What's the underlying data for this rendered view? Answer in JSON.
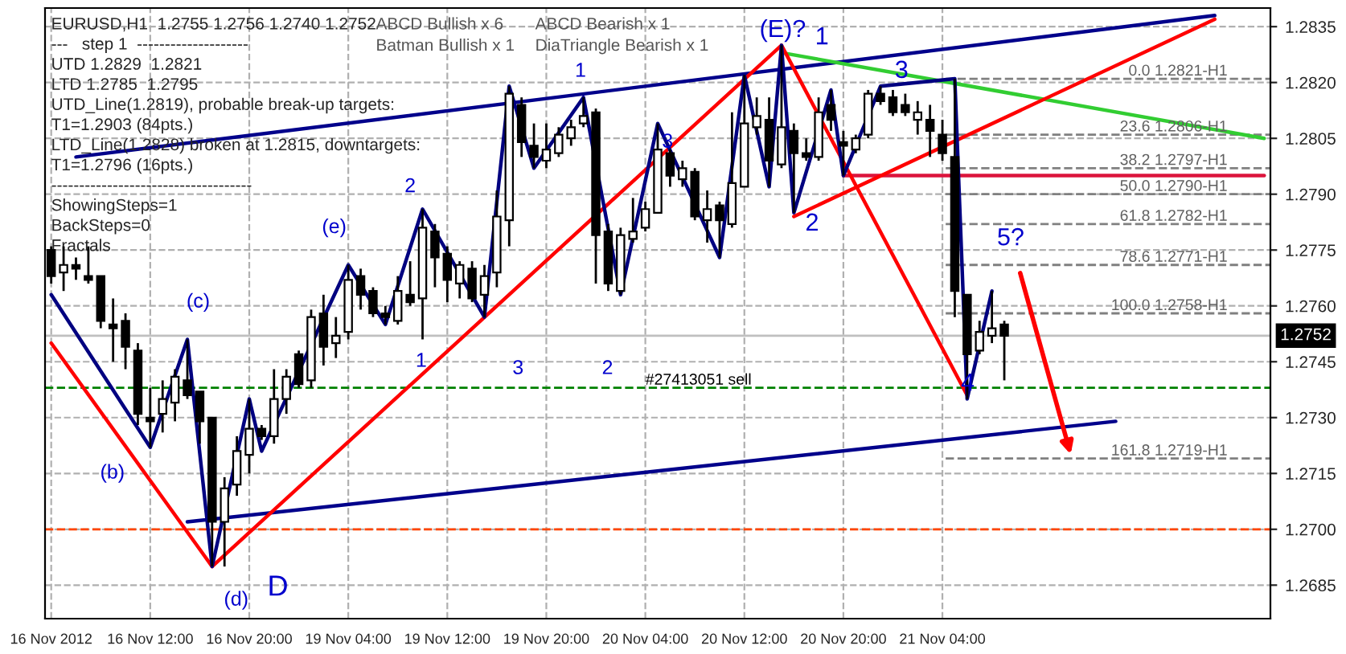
{
  "chart_data": {
    "type": "candlestick",
    "title": "EURUSD,H1  1.2755 1.2756 1.2740 1.2752",
    "categories": [
      "16 Nov 2012",
      null,
      null,
      null,
      null,
      null,
      null,
      null,
      "16 Nov 12:00",
      null,
      null,
      null,
      null,
      null,
      null,
      null,
      "16 Nov 20:00",
      null,
      null,
      null,
      null,
      null,
      null,
      null,
      "19 Nov 04:00",
      null,
      null,
      null,
      null,
      null,
      null,
      null,
      "19 Nov 12:00",
      null,
      null,
      null,
      null,
      null,
      null,
      null,
      "19 Nov 20:00",
      null,
      null,
      null,
      null,
      null,
      null,
      null,
      "20 Nov 04:00",
      null,
      null,
      null,
      null,
      null,
      null,
      null,
      "20 Nov 12:00",
      null,
      null,
      null,
      null,
      null,
      null,
      null,
      "20 Nov 20:00",
      null,
      null,
      null,
      null,
      null,
      null,
      null,
      "21 Nov 04:00",
      null,
      null,
      null,
      null,
      null,
      null,
      null,
      null,
      null,
      null,
      null,
      null,
      null,
      null,
      null,
      null,
      null,
      null,
      null,
      null,
      null,
      null,
      null,
      null,
      null,
      null
    ],
    "ohlc": [
      [
        1.2775,
        1.2776,
        1.2766,
        1.2768
      ],
      [
        1.2769,
        1.2776,
        1.2764,
        1.2771
      ],
      [
        1.2771,
        1.2773,
        1.2767,
        1.277
      ],
      [
        1.2768,
        1.2776,
        1.2766,
        1.2767
      ],
      [
        1.2768,
        1.2768,
        1.2754,
        1.2756
      ],
      [
        1.2755,
        1.2762,
        1.2745,
        1.2754
      ],
      [
        1.2756,
        1.2758,
        1.2743,
        1.2749
      ],
      [
        1.2748,
        1.275,
        1.2728,
        1.2731
      ],
      [
        1.273,
        1.2738,
        1.2722,
        1.2729
      ],
      [
        1.2731,
        1.274,
        1.2726,
        1.2735
      ],
      [
        1.2734,
        1.2743,
        1.2729,
        1.2741
      ],
      [
        1.274,
        1.2751,
        1.2735,
        1.2736
      ],
      [
        1.2737,
        1.2737,
        1.2723,
        1.2729
      ],
      [
        1.273,
        1.273,
        1.269,
        1.2702
      ],
      [
        1.2702,
        1.2714,
        1.269,
        1.2711
      ],
      [
        1.2712,
        1.2725,
        1.2709,
        1.2721
      ],
      [
        1.272,
        1.2735,
        1.2715,
        1.2727
      ],
      [
        1.2727,
        1.2728,
        1.2724,
        1.2725
      ],
      [
        1.2725,
        1.2743,
        1.2723,
        1.2735
      ],
      [
        1.2735,
        1.2743,
        1.2731,
        1.2741
      ],
      [
        1.2747,
        1.2748,
        1.2738,
        1.2739
      ],
      [
        1.274,
        1.2759,
        1.2738,
        1.2757
      ],
      [
        1.2758,
        1.2763,
        1.2744,
        1.2749
      ],
      [
        1.275,
        1.2757,
        1.2746,
        1.2752
      ],
      [
        1.2753,
        1.2771,
        1.2751,
        1.2767
      ],
      [
        1.2768,
        1.277,
        1.2759,
        1.2763
      ],
      [
        1.2764,
        1.2765,
        1.2757,
        1.2758
      ],
      [
        1.2758,
        1.276,
        1.2755,
        1.2757
      ],
      [
        1.2756,
        1.2768,
        1.2755,
        1.2764
      ],
      [
        1.2763,
        1.2772,
        1.276,
        1.2761
      ],
      [
        1.2762,
        1.2786,
        1.2751,
        1.2781
      ],
      [
        1.278,
        1.2782,
        1.2765,
        1.2773
      ],
      [
        1.2774,
        1.2776,
        1.2761,
        1.2767
      ],
      [
        1.2766,
        1.2772,
        1.2762,
        1.2771
      ],
      [
        1.277,
        1.2772,
        1.2761,
        1.2762
      ],
      [
        1.2763,
        1.2771,
        1.2757,
        1.2768
      ],
      [
        1.2769,
        1.2791,
        1.2765,
        1.2784
      ],
      [
        1.2783,
        1.2819,
        1.2776,
        1.2817
      ],
      [
        1.2814,
        1.2816,
        1.28,
        1.2804
      ],
      [
        1.2803,
        1.2809,
        1.2797,
        1.28
      ],
      [
        1.2799,
        1.2809,
        1.2797,
        1.2802
      ],
      [
        1.2801,
        1.2808,
        1.28,
        1.2806
      ],
      [
        1.2805,
        1.281,
        1.2803,
        1.2808
      ],
      [
        1.2809,
        1.2816,
        1.2808,
        1.2811
      ],
      [
        1.2812,
        1.2813,
        1.2766,
        1.2779
      ],
      [
        1.278,
        1.2782,
        1.2764,
        1.2766
      ],
      [
        1.2764,
        1.2781,
        1.2763,
        1.2779
      ],
      [
        1.2778,
        1.2789,
        1.2777,
        1.278
      ],
      [
        1.2781,
        1.2788,
        1.278,
        1.2786
      ],
      [
        1.2785,
        1.2809,
        1.2785,
        1.2802
      ],
      [
        1.2801,
        1.2802,
        1.2792,
        1.2795
      ],
      [
        1.2794,
        1.2799,
        1.2792,
        1.2797
      ],
      [
        1.2796,
        1.2797,
        1.2783,
        1.2784
      ],
      [
        1.2783,
        1.2791,
        1.2777,
        1.2786
      ],
      [
        1.2787,
        1.2788,
        1.2773,
        1.2783
      ],
      [
        1.2782,
        1.2812,
        1.2781,
        1.2793
      ],
      [
        1.2792,
        1.2822,
        1.2792,
        1.2809
      ],
      [
        1.2808,
        1.2816,
        1.2806,
        1.2811
      ],
      [
        1.281,
        1.2816,
        1.2792,
        1.2799
      ],
      [
        1.2798,
        1.283,
        1.2797,
        1.2808
      ],
      [
        1.2807,
        1.2809,
        1.2785,
        1.2801
      ],
      [
        1.2801,
        1.2805,
        1.2799,
        1.28
      ],
      [
        1.28,
        1.2816,
        1.2799,
        1.2812
      ],
      [
        1.2814,
        1.2818,
        1.2807,
        1.281
      ],
      [
        1.2804,
        1.2807,
        1.2795,
        1.2803
      ],
      [
        1.2802,
        1.2806,
        1.2801,
        1.2805
      ],
      [
        1.2806,
        1.2818,
        1.2805,
        1.2817
      ],
      [
        1.2817,
        1.2819,
        1.2814,
        1.2815
      ],
      [
        1.2816,
        1.2818,
        1.2811,
        1.2812
      ],
      [
        1.2814,
        1.2817,
        1.2811,
        1.2812
      ],
      [
        1.281,
        1.2815,
        1.2806,
        1.2812
      ],
      [
        1.281,
        1.2814,
        1.28,
        1.2807
      ],
      [
        1.2806,
        1.281,
        1.2799,
        1.2801
      ],
      [
        1.28,
        1.2821,
        1.2757,
        1.2764
      ],
      [
        1.2763,
        1.2763,
        1.2735,
        1.2747
      ],
      [
        1.2748,
        1.2756,
        1.2747,
        1.2753
      ],
      [
        1.2752,
        1.2764,
        1.275,
        1.2754
      ],
      [
        1.2755,
        1.2756,
        1.274,
        1.2752
      ],
      null,
      null,
      null,
      null,
      null,
      null,
      null,
      null,
      null,
      null,
      null,
      null,
      null,
      null,
      null,
      null,
      null,
      null,
      null,
      null,
      null
    ],
    "series": [
      {
        "type": "line",
        "color": "#00008b",
        "values": [
          null,
          null,
          1.28,
          null,
          null,
          null,
          null,
          null,
          null,
          null,
          null,
          null,
          null,
          null,
          null,
          null,
          null,
          null,
          null,
          null,
          null,
          null,
          null,
          null,
          null,
          null,
          null,
          null,
          null,
          null,
          null,
          null,
          null,
          null,
          null,
          null,
          null,
          null,
          null,
          null,
          null,
          null,
          null,
          null,
          null,
          null,
          null,
          null,
          null,
          null,
          null,
          null,
          null,
          null,
          null,
          null,
          null,
          null,
          null,
          null,
          null,
          null,
          null,
          null,
          null,
          null,
          null,
          null,
          null,
          null,
          null,
          null,
          null,
          null,
          null,
          null,
          null,
          null,
          null,
          null,
          null,
          null,
          null,
          null,
          null,
          null,
          null,
          null,
          null,
          null,
          null,
          null,
          null,
          null,
          1.2838,
          null,
          null,
          null,
          null
        ]
      },
      {
        "type": "line",
        "color": "#00008b",
        "values": [
          null,
          null,
          null,
          null,
          null,
          null,
          null,
          null,
          null,
          null,
          null,
          1.2702,
          null,
          null,
          null,
          null,
          null,
          null,
          null,
          null,
          null,
          null,
          null,
          null,
          null,
          null,
          null,
          null,
          null,
          null,
          null,
          null,
          null,
          null,
          null,
          null,
          null,
          null,
          null,
          null,
          null,
          null,
          null,
          null,
          null,
          null,
          null,
          null,
          null,
          null,
          null,
          null,
          null,
          null,
          null,
          null,
          null,
          null,
          null,
          null,
          null,
          null,
          null,
          null,
          null,
          null,
          null,
          null,
          null,
          null,
          null,
          null,
          null,
          null,
          null,
          null,
          null,
          null,
          null,
          null,
          null,
          null,
          null,
          null,
          null,
          null,
          1.2729,
          null,
          null,
          null,
          null,
          null,
          null,
          null,
          null,
          null,
          null,
          null,
          null
        ]
      },
      {
        "type": "line",
        "color": "#32cd32",
        "values": [
          null,
          null,
          null,
          null,
          null,
          null,
          null,
          null,
          null,
          null,
          null,
          null,
          null,
          null,
          null,
          null,
          null,
          null,
          null,
          null,
          null,
          null,
          null,
          null,
          null,
          null,
          null,
          null,
          null,
          null,
          null,
          null,
          null,
          null,
          null,
          null,
          null,
          null,
          null,
          null,
          null,
          null,
          null,
          null,
          null,
          null,
          null,
          null,
          null,
          null,
          null,
          null,
          null,
          null,
          null,
          null,
          null,
          null,
          null,
          1.2828,
          null,
          null,
          null,
          null,
          null,
          null,
          null,
          null,
          null,
          null,
          null,
          null,
          null,
          null,
          null,
          null,
          null,
          null,
          null,
          null,
          null,
          null,
          null,
          null,
          null,
          null,
          null,
          null,
          null,
          null,
          null,
          null,
          null,
          null,
          null,
          null,
          null,
          null,
          1.2805
        ]
      },
      {
        "type": "line",
        "color": "#dc143c",
        "values": [
          null,
          null,
          null,
          null,
          null,
          null,
          null,
          null,
          null,
          null,
          null,
          null,
          null,
          null,
          null,
          null,
          null,
          null,
          null,
          null,
          null,
          null,
          null,
          null,
          null,
          null,
          null,
          null,
          null,
          null,
          null,
          null,
          null,
          null,
          null,
          null,
          null,
          null,
          null,
          null,
          null,
          null,
          null,
          null,
          null,
          null,
          null,
          null,
          null,
          null,
          null,
          null,
          null,
          null,
          null,
          null,
          null,
          null,
          null,
          null,
          null,
          null,
          null,
          null,
          1.2795,
          null,
          null,
          null,
          null,
          null,
          null,
          null,
          null,
          null,
          null,
          null,
          null,
          null,
          null,
          null,
          null,
          null,
          null,
          null,
          null,
          null,
          null,
          null,
          null,
          null,
          null,
          null,
          null,
          null,
          null,
          null,
          null,
          null,
          1.2795
        ]
      },
      {
        "type": "line",
        "color": "#ff0000",
        "values": [
          null,
          null,
          null,
          null,
          null,
          null,
          null,
          null,
          null,
          null,
          null,
          null,
          null,
          null,
          null,
          null,
          null,
          null,
          null,
          null,
          null,
          null,
          null,
          null,
          null,
          null,
          null,
          null,
          null,
          null,
          null,
          null,
          null,
          null,
          null,
          null,
          null,
          null,
          null,
          null,
          null,
          null,
          null,
          null,
          null,
          null,
          null,
          null,
          null,
          null,
          null,
          null,
          null,
          null,
          null,
          null,
          null,
          null,
          null,
          null,
          1.2784,
          null,
          null,
          null,
          null,
          null,
          null,
          null,
          null,
          null,
          null,
          null,
          null,
          null,
          null,
          null,
          null,
          null,
          null,
          null,
          null,
          null,
          null,
          null,
          null,
          null,
          null,
          null,
          null,
          null,
          null,
          null,
          null,
          null,
          1.2837,
          null,
          null,
          null,
          null
        ]
      },
      {
        "type": "line",
        "color": "#ff0000",
        "values": [
          1.275,
          null,
          null,
          null,
          null,
          null,
          null,
          null,
          null,
          null,
          null,
          null,
          null,
          1.269,
          null,
          null,
          null,
          null,
          null,
          null,
          null,
          null,
          null,
          null,
          null,
          null,
          null,
          null,
          null,
          null,
          null,
          null,
          null,
          null,
          null,
          null,
          null,
          null,
          null,
          null,
          null,
          null,
          null,
          null,
          null,
          null,
          null,
          null,
          null,
          null,
          null,
          null,
          null,
          null,
          null,
          null,
          null,
          null,
          null,
          1.283,
          null,
          null,
          null,
          null,
          null,
          null,
          null,
          null,
          null,
          null,
          null,
          null,
          null,
          null,
          1.2736,
          null,
          null,
          null,
          null,
          null,
          null,
          null,
          null,
          null,
          null,
          null,
          null,
          null,
          null,
          null,
          null,
          null,
          null,
          null,
          null,
          null,
          null,
          null,
          null
        ]
      },
      {
        "type": "line",
        "color": "#000080",
        "values": [
          1.2763,
          null,
          null,
          null,
          null,
          null,
          null,
          null,
          1.2722,
          null,
          null,
          1.2751,
          null,
          1.269,
          null,
          null,
          1.2735,
          1.2721,
          null,
          null,
          null,
          null,
          null,
          null,
          1.2771,
          null,
          null,
          1.2755,
          null,
          null,
          1.2786,
          null,
          null,
          null,
          null,
          1.2757,
          null,
          1.2819,
          null,
          1.2797,
          null,
          null,
          null,
          1.2816,
          null,
          null,
          1.2763,
          null,
          null,
          1.2809,
          null,
          null,
          null,
          null,
          1.2773,
          null,
          1.2822,
          null,
          1.2792,
          1.283,
          1.2785,
          null,
          null,
          1.2818,
          1.2795,
          null,
          null,
          1.2819,
          null,
          null,
          null,
          null,
          null,
          1.2821,
          1.2735,
          null,
          1.2764,
          null,
          null,
          null,
          null,
          null,
          null,
          null,
          null,
          null,
          null,
          null,
          null,
          null,
          null,
          null,
          null,
          null,
          null,
          null,
          null,
          null,
          null
        ]
      }
    ],
    "ylim": [
      1.2676,
      1.284
    ],
    "yticks": [
      1.2685,
      {
        "value": 1.27,
        "label": "1.2700"
      },
      1.2715,
      {
        "value": 1.273,
        "label": "1.2730"
      },
      1.2745,
      {
        "value": 1.276,
        "label": "1.2760"
      },
      1.2775,
      {
        "value": 1.279,
        "label": "1.2790"
      },
      1.2805,
      {
        "value": 1.282,
        "label": "1.2820"
      },
      1.2835
    ],
    "grid": true,
    "ref_lines": [
      {
        "axis": "y",
        "value": 1.2821,
        "label": "0.0 1.2821-H1",
        "color": "#808080",
        "line_style": "dashed"
      },
      {
        "axis": "y",
        "value": 1.2806,
        "label": "23.6 1.2806-H1",
        "color": "#808080",
        "line_style": "dashed"
      },
      {
        "axis": "y",
        "value": 1.2797,
        "label": "38.2 1.2797-H1",
        "color": "#808080",
        "line_style": "dashed"
      },
      {
        "axis": "y",
        "value": 1.279,
        "label": "50.0 1.2790-H1",
        "color": "#808080",
        "line_style": "dashed"
      },
      {
        "axis": "y",
        "value": 1.2782,
        "label": "61.8 1.2782-H1",
        "color": "#808080",
        "line_style": "dashed"
      },
      {
        "axis": "y",
        "value": 1.2771,
        "label": "78.6 1.2771-H1",
        "color": "#808080",
        "line_style": "dashed"
      },
      {
        "axis": "y",
        "value": 1.2758,
        "label": "100.0 1.2758-H1",
        "color": "#808080",
        "line_style": "dashed"
      },
      {
        "axis": "y",
        "value": 1.2719,
        "label": "161.8 1.2719-H1",
        "color": "#808080",
        "line_style": "dashed"
      },
      {
        "axis": "y",
        "value": 1.2752,
        "label": "1.2752",
        "color": "#c0c0c0",
        "line_style": "solid"
      },
      {
        "axis": "y",
        "value": 1.2738,
        "label": "#27413051 sell",
        "color": "#008000",
        "line_style": "dashed"
      },
      {
        "axis": "y",
        "value": 1.27,
        "color": "#ff4500",
        "line_style": "dashed"
      }
    ],
    "annotations": [
      "---   step 1  --------------------",
      "UTD 1.2829  1.2821",
      "LTD 1.2785  1.2795",
      "UTD_Line(1.2819), probable break-up targets:",
      "T1=1.2903 (84pts.)",
      "LTD_Line(1.2828) broken at 1.2815, downtargets:",
      "T1=1.2796 (16pts.)",
      "------------------------------------",
      "ShowingSteps=1",
      "BackSteps=0",
      "Fractals",
      "ABCD Bullish x 6",
      "ABCD Bearish x 1",
      "Batman Bullish x 1",
      "DiaTriangle Bearish x 1",
      "D",
      "(E)?",
      "1",
      "3",
      "2",
      "4",
      "5?",
      "1",
      "3",
      "2",
      "(e)",
      "(c)",
      "(b)",
      "(d)",
      "1",
      "3",
      "2"
    ]
  }
}
